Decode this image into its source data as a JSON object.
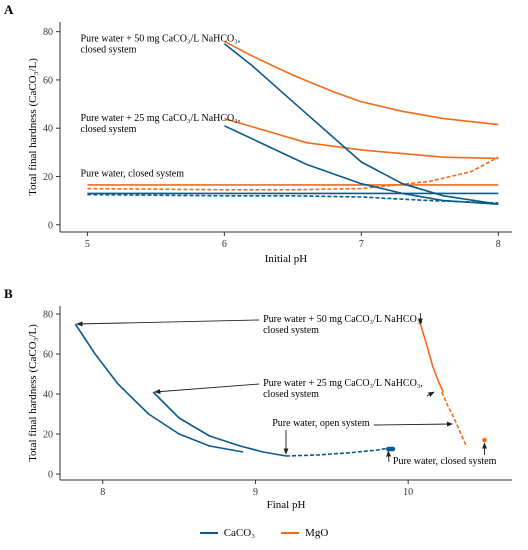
{
  "figure": {
    "panels": [
      "A",
      "B"
    ],
    "legend": [
      {
        "label": "CaCO₃",
        "color": "#0b5a8c"
      },
      {
        "label": "MgO",
        "color": "#f26b1d"
      }
    ]
  },
  "chart_data": [
    {
      "panel": "A",
      "type": "line",
      "xlabel": "Initial pH",
      "ylabel": "Total final hardness (CaCO₃/L)",
      "xlim": [
        4.8,
        8.1
      ],
      "ylim": [
        -3,
        84
      ],
      "xticks": [
        5,
        6,
        7,
        8
      ],
      "yticks": [
        0,
        20,
        40,
        60,
        80
      ],
      "grid": false,
      "annotations": [
        {
          "lines": [
            "Pure water + 50 mg CaCO₃/L NaHCO₃,",
            "closed system"
          ],
          "x": 4.95,
          "y": 76
        },
        {
          "lines": [
            "Pure water + 25 mg CaCO₃/L NaHCO₃,",
            "closed system"
          ],
          "x": 4.95,
          "y": 43
        },
        {
          "lines": [
            "Pure water, closed system"
          ],
          "x": 4.95,
          "y": 20
        }
      ],
      "series": [
        {
          "reagent": "MgO",
          "color": "#f26b1d",
          "style": "solid",
          "x": [
            6.0,
            6.2,
            6.5,
            6.8,
            7.0,
            7.3,
            7.6,
            8.0
          ],
          "y": [
            76,
            70,
            62,
            55,
            51,
            47,
            44,
            41.5
          ]
        },
        {
          "reagent": "MgO",
          "color": "#f26b1d",
          "style": "solid",
          "x": [
            6.0,
            6.3,
            6.6,
            7.0,
            7.3,
            7.6,
            8.0
          ],
          "y": [
            44,
            39,
            34,
            31,
            29.5,
            28,
            27.5
          ]
        },
        {
          "reagent": "MgO",
          "color": "#f26b1d",
          "style": "solid",
          "x": [
            5.0,
            6.0,
            7.0,
            8.0
          ],
          "y": [
            16.5,
            16.5,
            16.5,
            16.5
          ]
        },
        {
          "reagent": "MgO",
          "color": "#f26b1d",
          "style": "dashed",
          "x": [
            5.0,
            6.0,
            6.5,
            7.0,
            7.5,
            7.8,
            8.0
          ],
          "y": [
            15,
            14.5,
            14.5,
            15,
            18,
            22,
            28
          ]
        },
        {
          "reagent": "CaCO₃",
          "color": "#0b5a8c",
          "style": "solid",
          "x": [
            6.0,
            6.2,
            6.5,
            6.8,
            7.0,
            7.3,
            7.6,
            8.0
          ],
          "y": [
            75,
            66,
            51,
            36,
            26,
            17,
            12,
            8.5
          ]
        },
        {
          "reagent": "CaCO₃",
          "color": "#0b5a8c",
          "style": "solid",
          "x": [
            6.0,
            6.3,
            6.6,
            7.0,
            7.3,
            7.6,
            8.0
          ],
          "y": [
            41,
            33,
            25,
            17,
            13,
            10,
            8.5
          ]
        },
        {
          "reagent": "CaCO₃",
          "color": "#0b5a8c",
          "style": "solid",
          "x": [
            5.0,
            6.0,
            7.0,
            8.0
          ],
          "y": [
            13,
            13,
            13,
            13
          ]
        },
        {
          "reagent": "CaCO₃",
          "color": "#0b5a8c",
          "style": "dashed",
          "x": [
            5.0,
            6.0,
            6.5,
            7.0,
            7.5,
            8.0
          ],
          "y": [
            12.5,
            12,
            12,
            11.5,
            10,
            9
          ]
        }
      ]
    },
    {
      "panel": "B",
      "type": "line",
      "xlabel": "Final pH",
      "ylabel": "Total final hardness (CaCO₃/L)",
      "xlim": [
        7.72,
        10.68
      ],
      "ylim": [
        -3,
        84
      ],
      "xticks": [
        8,
        9,
        10
      ],
      "yticks": [
        0,
        20,
        40,
        60,
        80
      ],
      "grid": false,
      "annotations": [
        {
          "lines": [
            "Pure water + 50 mg CaCO₃/L NaHCO₃,",
            "closed system"
          ],
          "x": 9.05,
          "y": 76,
          "arrows": [
            [
              7.83,
              75
            ],
            [
              10.08,
              75
            ]
          ]
        },
        {
          "lines": [
            "Pure water + 25 mg CaCO₃/L NaHCO₃,",
            "closed system"
          ],
          "x": 9.05,
          "y": 44,
          "arrows": [
            [
              8.34,
              41
            ],
            [
              10.17,
              41
            ]
          ]
        },
        {
          "lines": [
            "Pure water, open system"
          ],
          "x": 9.11,
          "y": 24,
          "arrows": [
            [
              9.2,
              10
            ],
            [
              10.29,
              25
            ]
          ]
        },
        {
          "lines": [
            "Pure water, closed system"
          ],
          "x": 9.9,
          "y": 5,
          "arrows": [
            [
              9.87,
              11.5
            ],
            [
              10.5,
              15.5
            ]
          ]
        }
      ],
      "series": [
        {
          "reagent": "CaCO₃",
          "color": "#0b5a8c",
          "style": "solid",
          "x": [
            7.82,
            7.95,
            8.1,
            8.3,
            8.5,
            8.7,
            8.92
          ],
          "y": [
            75,
            60,
            45,
            30,
            20,
            14,
            11
          ]
        },
        {
          "reagent": "CaCO₃",
          "color": "#0b5a8c",
          "style": "solid",
          "x": [
            8.33,
            8.5,
            8.7,
            8.9,
            9.05,
            9.2
          ],
          "y": [
            41,
            28,
            19,
            14,
            11,
            9
          ]
        },
        {
          "reagent": "CaCO₃",
          "color": "#0b5a8c",
          "style": "dashed",
          "x": [
            9.2,
            9.4,
            9.6,
            9.8,
            9.88
          ],
          "y": [
            9,
            9.5,
            10.5,
            12,
            13
          ]
        },
        {
          "reagent": "CaCO₃",
          "color": "#0b5a8c",
          "style": "points",
          "x": [
            9.87,
            9.88,
            9.89,
            9.9
          ],
          "y": [
            12.5,
            12.5,
            12.5,
            12.5
          ]
        },
        {
          "reagent": "MgO",
          "color": "#f26b1d",
          "style": "solid",
          "x": [
            10.08,
            10.12,
            10.16,
            10.2,
            10.23
          ],
          "y": [
            75,
            65,
            54,
            46,
            41
          ]
        },
        {
          "reagent": "MgO",
          "color": "#f26b1d",
          "style": "dashed",
          "x": [
            10.22,
            10.26,
            10.3,
            10.34,
            10.38
          ],
          "y": [
            41,
            34,
            28,
            21,
            14
          ]
        },
        {
          "reagent": "MgO",
          "color": "#f26b1d",
          "style": "points",
          "x": [
            10.5
          ],
          "y": [
            17
          ]
        }
      ]
    }
  ]
}
